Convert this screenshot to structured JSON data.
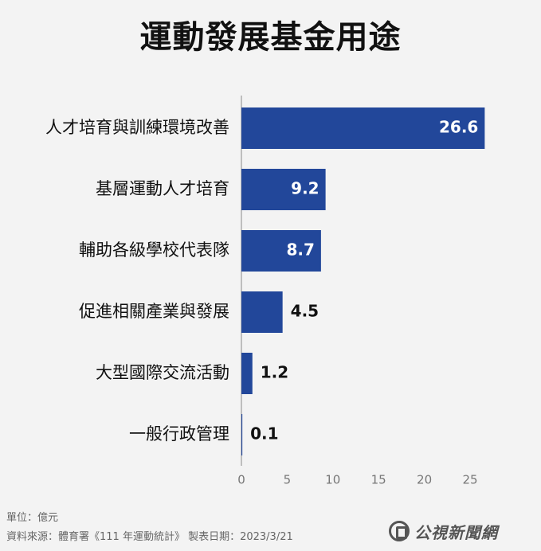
{
  "header": {
    "title": "運動發展基金用途"
  },
  "chart_data": {
    "type": "bar",
    "orientation": "horizontal",
    "categories": [
      "人才培育與訓練環境改善",
      "基層運動人才培育",
      "輔助各級學校代表隊",
      "促進相關產業與發展",
      "大型國際交流活動",
      "一般行政管理"
    ],
    "values": [
      26.6,
      9.2,
      8.7,
      4.5,
      1.2,
      0.1
    ],
    "value_labels": [
      "26.6",
      "9.2",
      "8.7",
      "4.5",
      "1.2",
      "0.1"
    ],
    "xticks": [
      "0",
      "5",
      "10",
      "15",
      "20",
      "25"
    ],
    "xlim": [
      0,
      27
    ],
    "grid": false,
    "bar_color": "#22479a"
  },
  "footer": {
    "unit": "單位：億元",
    "source": "資料來源：體育署《111 年運動統計》 製表日期：2023/3/21",
    "logo_text": "公視新聞網"
  }
}
